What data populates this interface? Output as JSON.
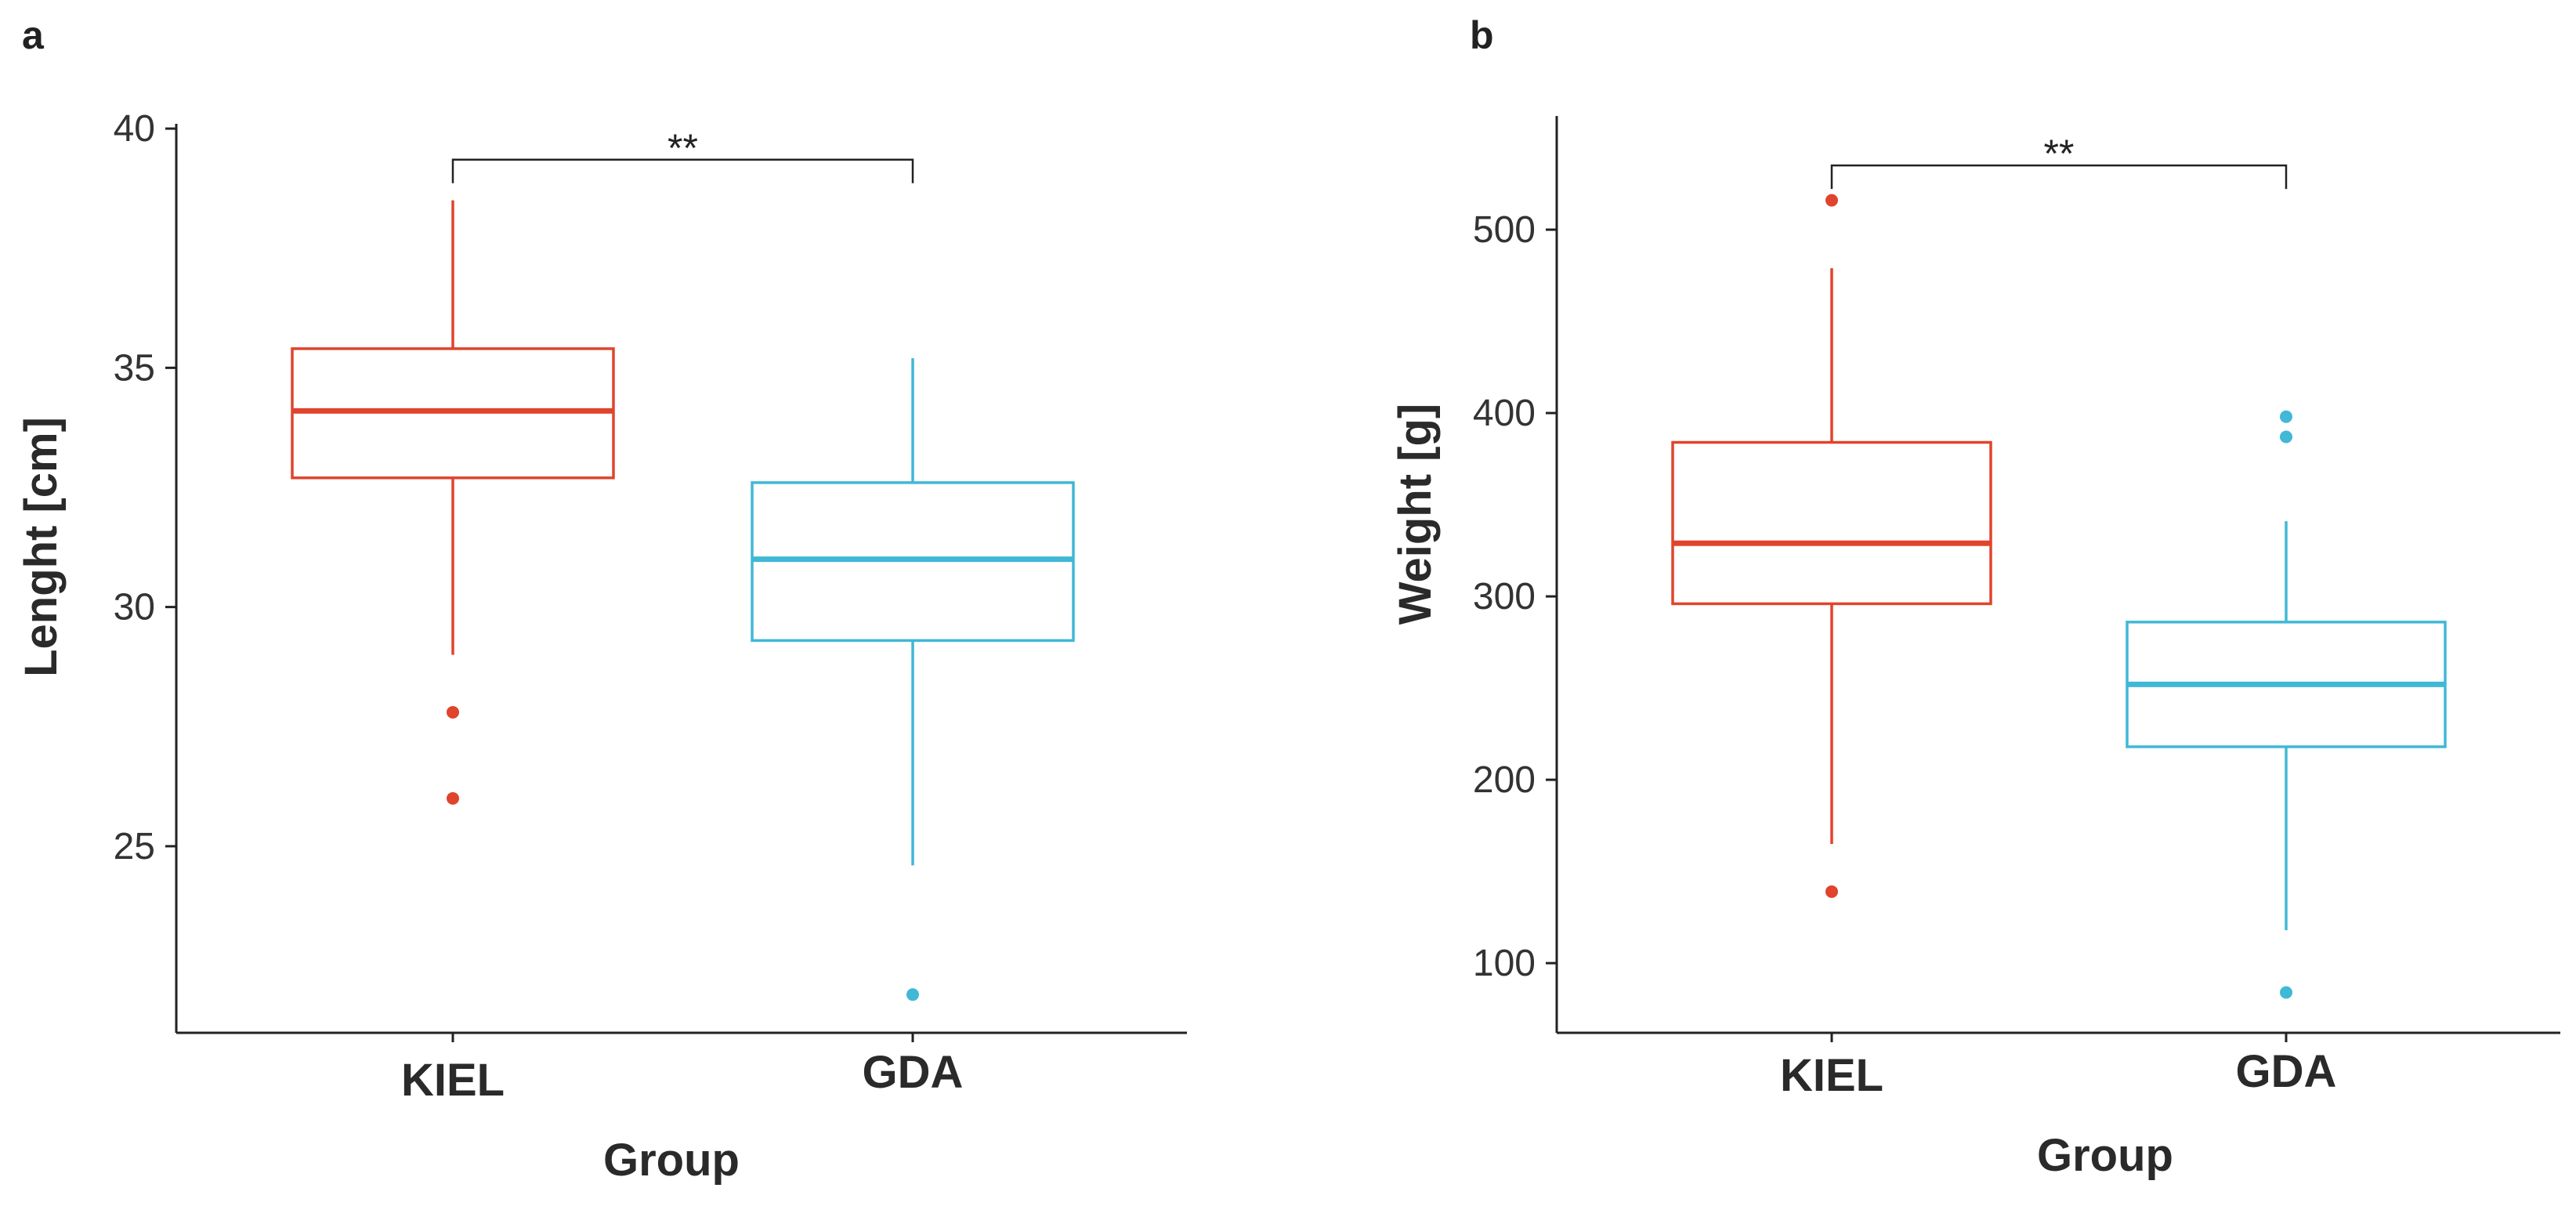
{
  "chart_data": [
    {
      "type": "box",
      "panel_label": "a",
      "xlabel": "Group",
      "ylabel": "Lenght [cm]",
      "ylim": [
        21.1,
        40.1
      ],
      "yticks": [
        25,
        30,
        35,
        40
      ],
      "categories": [
        "KIEL",
        "GDA"
      ],
      "colors": [
        "#e0442c",
        "#40b8d6"
      ],
      "boxes": [
        {
          "category": "KIEL",
          "whisker_low": 29.0,
          "q1": 32.7,
          "median": 34.1,
          "q3": 35.4,
          "whisker_high": 38.5,
          "outliers": [
            27.8,
            26.0
          ]
        },
        {
          "category": "GDA",
          "whisker_low": 24.6,
          "q1": 29.3,
          "median": 31.0,
          "q3": 32.6,
          "whisker_high": 35.2,
          "outliers": [
            21.9
          ]
        }
      ],
      "significance": {
        "label": "**",
        "from": "KIEL",
        "to": "GDA",
        "y": 39.35
      }
    },
    {
      "type": "box",
      "panel_label": "b",
      "xlabel": "Group",
      "ylabel": "Weight [g]",
      "ylim": [
        62,
        562
      ],
      "yticks": [
        100,
        200,
        300,
        400,
        500
      ],
      "categories": [
        "KIEL",
        "GDA"
      ],
      "colors": [
        "#e0442c",
        "#40b8d6"
      ],
      "boxes": [
        {
          "category": "KIEL",
          "whisker_low": 165,
          "q1": 296,
          "median": 329,
          "q3": 384,
          "whisker_high": 479,
          "outliers": [
            516,
            139
          ]
        },
        {
          "category": "GDA",
          "whisker_low": 118,
          "q1": 218,
          "median": 252,
          "q3": 286,
          "whisker_high": 341,
          "outliers": [
            398,
            387,
            84
          ]
        }
      ],
      "significance": {
        "label": "**",
        "from": "KIEL",
        "to": "GDA",
        "y": 535
      }
    }
  ]
}
